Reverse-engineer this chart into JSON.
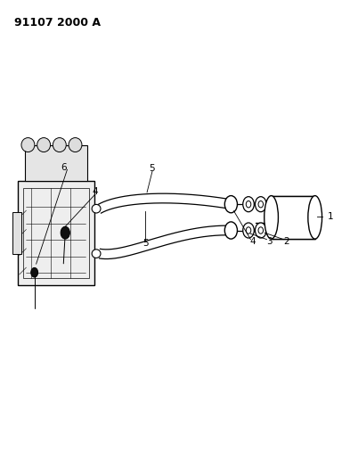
{
  "title": "91107 2000 A",
  "title_fontsize": 9,
  "title_fontweight": "bold",
  "background_color": "#ffffff",
  "line_color": "#000000",
  "figsize": [
    3.93,
    5.33
  ],
  "dpi": 100
}
